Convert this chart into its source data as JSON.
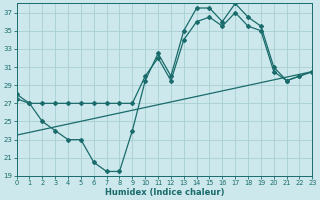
{
  "xlabel": "Humidex (Indice chaleur)",
  "background_color": "#cce8ec",
  "grid_color": "#a8cfd4",
  "line_color": "#1a6b6b",
  "xmin": 0,
  "xmax": 23,
  "ymin": 19,
  "ymax": 38,
  "yticks": [
    19,
    21,
    23,
    25,
    27,
    29,
    31,
    33,
    35,
    37
  ],
  "xticks": [
    0,
    1,
    2,
    3,
    4,
    5,
    6,
    7,
    8,
    9,
    10,
    11,
    12,
    13,
    14,
    15,
    16,
    17,
    18,
    19,
    20,
    21,
    22,
    23
  ],
  "curve1_x": [
    0,
    1,
    2,
    3,
    4,
    5,
    6,
    7,
    8,
    9,
    10,
    11,
    12,
    13,
    14,
    15,
    16,
    17,
    18,
    19,
    20,
    21,
    22,
    23
  ],
  "curve1_y": [
    28.0,
    27.0,
    25.0,
    24.0,
    23.0,
    23.0,
    20.5,
    19.5,
    19.5,
    24.0,
    29.5,
    32.5,
    30.0,
    35.0,
    37.5,
    37.5,
    36.0,
    38.0,
    36.5,
    35.5,
    31.0,
    29.5,
    30.0,
    30.5
  ],
  "curve2_x": [
    0,
    1,
    2,
    3,
    4,
    5,
    6,
    7,
    8,
    9,
    10,
    11,
    12,
    13,
    14,
    15,
    16,
    17,
    18,
    19,
    20,
    21,
    22,
    23
  ],
  "curve2_y": [
    27.5,
    27.0,
    27.0,
    27.0,
    27.0,
    27.0,
    27.0,
    27.0,
    27.0,
    27.0,
    30.0,
    32.0,
    29.5,
    34.0,
    36.0,
    36.5,
    35.5,
    37.0,
    35.5,
    35.0,
    30.5,
    29.5,
    30.0,
    30.5
  ],
  "line3_x": [
    0,
    23
  ],
  "line3_y": [
    23.5,
    30.5
  ]
}
